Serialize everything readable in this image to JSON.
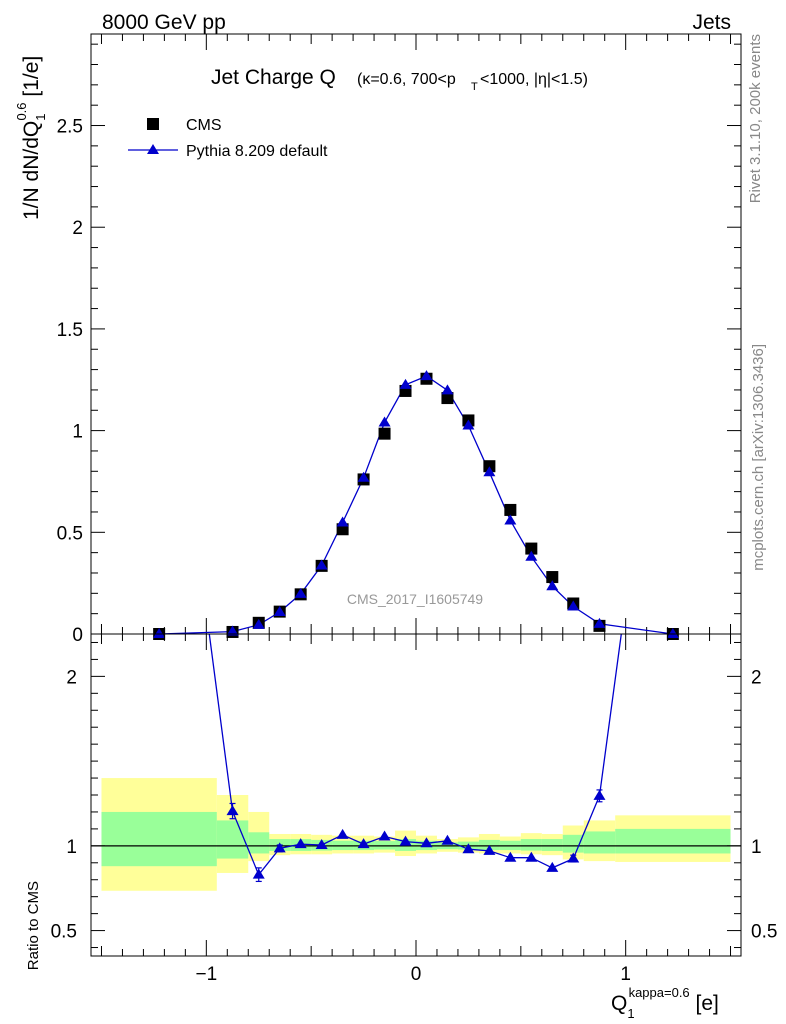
{
  "header": {
    "energy_label": "8000 GeV pp",
    "process_label": "Jets",
    "rivet_label": "Rivet 3.1.10,  200k events",
    "mcplots_label": "mcplots.cern.ch [arXiv:1306.3436]",
    "analysis_label": "CMS_2017_I1605749"
  },
  "chart_data": [
    {
      "type": "scatter",
      "panel": "main",
      "title_main": "Jet Charge Q",
      "title_sub_1": "(κ=0.6, 700<p",
      "title_sub_T": "T",
      "title_sub_2": "<1000, |η|<1.5)",
      "ylabel": "1/N dN/dQ",
      "ylabel_sub": "1",
      "ylabel_sup": "0.6",
      "ylabel_unit": " [1/e]",
      "xlim": [
        -1.55,
        1.55
      ],
      "ylim": [
        0,
        2.95
      ],
      "yticks": [
        {
          "value": 0,
          "label": "0"
        },
        {
          "value": 0.5,
          "label": "0.5"
        },
        {
          "value": 1,
          "label": "1"
        },
        {
          "value": 1.5,
          "label": "1.5"
        },
        {
          "value": 2,
          "label": "2"
        },
        {
          "value": 2.5,
          "label": "2.5"
        }
      ],
      "legend_position": "top-left",
      "series": [
        {
          "name": "CMS",
          "marker": "square",
          "color": "#000000",
          "x": [
            -1.225,
            -0.875,
            -0.75,
            -0.65,
            -0.55,
            -0.45,
            -0.35,
            -0.25,
            -0.15,
            -0.05,
            0.05,
            0.15,
            0.25,
            0.35,
            0.45,
            0.55,
            0.65,
            0.75,
            0.875,
            1.225
          ],
          "y": [
            0.0,
            0.01,
            0.055,
            0.11,
            0.195,
            0.335,
            0.515,
            0.76,
            0.985,
            1.195,
            1.255,
            1.16,
            1.05,
            0.825,
            0.61,
            0.42,
            0.28,
            0.15,
            0.04,
            0.0
          ]
        },
        {
          "name": "Pythia 8.209 default",
          "marker": "triangle",
          "color": "#0000cc",
          "x": [
            -1.225,
            -0.875,
            -0.75,
            -0.65,
            -0.55,
            -0.45,
            -0.35,
            -0.25,
            -0.15,
            -0.05,
            0.05,
            0.15,
            0.25,
            0.35,
            0.45,
            0.55,
            0.65,
            0.75,
            0.875,
            1.225
          ],
          "y": [
            0.0,
            0.012,
            0.045,
            0.108,
            0.197,
            0.337,
            0.548,
            0.768,
            1.04,
            1.225,
            1.268,
            1.198,
            1.025,
            0.795,
            0.558,
            0.38,
            0.235,
            0.135,
            0.05,
            0.0
          ]
        }
      ]
    },
    {
      "type": "line",
      "panel": "ratio",
      "ylabel": "Ratio to CMS",
      "xlabel": "Q",
      "xlabel_sub": "1",
      "xlabel_sup": "kappa=0.6",
      "xlabel_unit": " [e]",
      "xlim": [
        -1.55,
        1.55
      ],
      "ylim": [
        0.35,
        2.25
      ],
      "xticks": [
        {
          "value": -1,
          "label": "−1"
        },
        {
          "value": 0,
          "label": "0"
        },
        {
          "value": 1,
          "label": "1"
        }
      ],
      "yticks": [
        {
          "value": 0.5,
          "label": "0.5"
        },
        {
          "value": 1,
          "label": "1"
        },
        {
          "value": 2,
          "label": "2"
        }
      ],
      "bands": [
        {
          "x0": -1.5,
          "x1": -0.95,
          "y_yellow": [
            0.735,
            1.4
          ],
          "y_green": [
            0.88,
            1.2
          ]
        },
        {
          "x0": -0.95,
          "x1": -0.8,
          "y_yellow": [
            0.84,
            1.3
          ],
          "y_green": [
            0.925,
            1.15
          ]
        },
        {
          "x0": -0.8,
          "x1": -0.7,
          "y_yellow": [
            0.91,
            1.2
          ],
          "y_green": [
            0.955,
            1.08
          ]
        },
        {
          "x0": -0.7,
          "x1": -0.6,
          "y_yellow": [
            0.945,
            1.07
          ],
          "y_green": [
            0.97,
            1.04
          ]
        },
        {
          "x0": -0.6,
          "x1": -0.5,
          "y_yellow": [
            0.95,
            1.07
          ],
          "y_green": [
            0.97,
            1.04
          ]
        },
        {
          "x0": -0.5,
          "x1": -0.4,
          "y_yellow": [
            0.95,
            1.065
          ],
          "y_green": [
            0.972,
            1.035
          ]
        },
        {
          "x0": -0.4,
          "x1": -0.3,
          "y_yellow": [
            0.955,
            1.06
          ],
          "y_green": [
            0.975,
            1.03
          ]
        },
        {
          "x0": -0.3,
          "x1": -0.2,
          "y_yellow": [
            0.955,
            1.06
          ],
          "y_green": [
            0.975,
            1.03
          ]
        },
        {
          "x0": -0.2,
          "x1": -0.1,
          "y_yellow": [
            0.96,
            1.055
          ],
          "y_green": [
            0.978,
            1.028
          ]
        },
        {
          "x0": -0.1,
          "x1": 0.0,
          "y_yellow": [
            0.94,
            1.09
          ],
          "y_green": [
            0.97,
            1.04
          ]
        },
        {
          "x0": 0.0,
          "x1": 0.1,
          "y_yellow": [
            0.955,
            1.06
          ],
          "y_green": [
            0.975,
            1.03
          ]
        },
        {
          "x0": 0.1,
          "x1": 0.2,
          "y_yellow": [
            0.965,
            1.04
          ],
          "y_green": [
            0.98,
            1.02
          ]
        },
        {
          "x0": 0.2,
          "x1": 0.3,
          "y_yellow": [
            0.96,
            1.05
          ],
          "y_green": [
            0.978,
            1.025
          ]
        },
        {
          "x0": 0.3,
          "x1": 0.4,
          "y_yellow": [
            0.955,
            1.07
          ],
          "y_green": [
            0.975,
            1.035
          ]
        },
        {
          "x0": 0.4,
          "x1": 0.5,
          "y_yellow": [
            0.955,
            1.055
          ],
          "y_green": [
            0.975,
            1.03
          ]
        },
        {
          "x0": 0.5,
          "x1": 0.6,
          "y_yellow": [
            0.95,
            1.075
          ],
          "y_green": [
            0.972,
            1.04
          ]
        },
        {
          "x0": 0.6,
          "x1": 0.7,
          "y_yellow": [
            0.945,
            1.07
          ],
          "y_green": [
            0.97,
            1.04
          ]
        },
        {
          "x0": 0.7,
          "x1": 0.8,
          "y_yellow": [
            0.92,
            1.12
          ],
          "y_green": [
            0.96,
            1.065
          ]
        },
        {
          "x0": 0.8,
          "x1": 0.95,
          "y_yellow": [
            0.91,
            1.15
          ],
          "y_green": [
            0.955,
            1.085
          ]
        },
        {
          "x0": 0.95,
          "x1": 1.5,
          "y_yellow": [
            0.905,
            1.18
          ],
          "y_green": [
            0.955,
            1.1
          ]
        }
      ],
      "series": [
        {
          "name": "Pythia 8.209 default",
          "color": "#0000cc",
          "x": [
            -0.875,
            -0.75,
            -0.65,
            -0.55,
            -0.45,
            -0.35,
            -0.25,
            -0.15,
            -0.05,
            0.05,
            0.15,
            0.25,
            0.35,
            0.45,
            0.55,
            0.65,
            0.75,
            0.875
          ],
          "y": [
            1.205,
            0.83,
            0.985,
            1.01,
            1.005,
            1.065,
            1.01,
            1.055,
            1.025,
            1.015,
            1.03,
            0.98,
            0.97,
            0.93,
            0.93,
            0.87,
            0.925,
            1.295
          ],
          "err": [
            0.045,
            0.04,
            0.02,
            0.015,
            0.012,
            0.01,
            0.01,
            0.01,
            0.01,
            0.01,
            0.01,
            0.01,
            0.01,
            0.012,
            0.012,
            0.015,
            0.02,
            0.035
          ],
          "offscale_x": [
            -1.225,
            1.225
          ],
          "offscale_y": [
            4.5,
            4.5
          ]
        }
      ]
    }
  ]
}
